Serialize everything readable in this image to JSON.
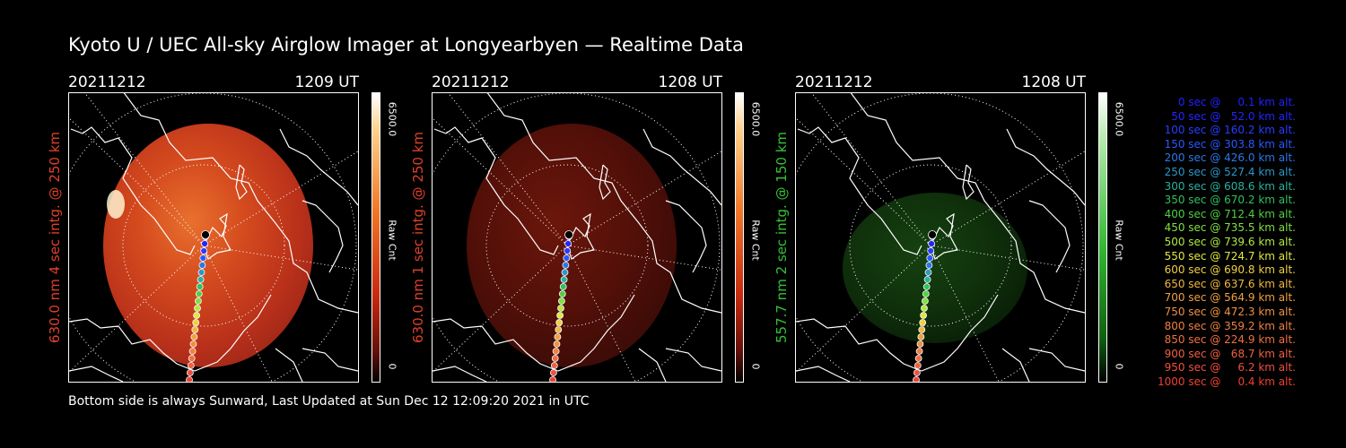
{
  "title": "Kyoto U / UEC All-sky Airglow Imager at Longyearbyen — Realtime Data",
  "footer": "Bottom side is always Sunward, Last Updated at Sun Dec 12 12:09:20 2021 in UTC",
  "colors": {
    "red_label": "#e0402a",
    "green_label": "#36c236"
  },
  "panels": [
    {
      "date": "20211212",
      "time": "1209 UT",
      "ylabel": "630.0 nm  4 sec intg. @ 250 km",
      "cbar_max": "6500.0",
      "cbar_unit": "Raw Cnt",
      "cbar_min": "0",
      "cmap": "red",
      "intensity": 1.0
    },
    {
      "date": "20211212",
      "time": "1208 UT",
      "ylabel": "630.0 nm  1 sec intg. @ 250 km",
      "cbar_max": "6500.0",
      "cbar_unit": "Raw Cnt",
      "cbar_min": "0",
      "cmap": "red",
      "intensity": 0.28
    },
    {
      "date": "20211212",
      "time": "1208 UT",
      "ylabel": "557.7 nm  2 sec intg. @ 150 km",
      "cbar_max": "6500.0",
      "cbar_unit": "Raw Cnt",
      "cbar_min": "0",
      "cmap": "green",
      "intensity": 0.35
    }
  ],
  "legend": [
    {
      "text": "   0 sec @     0.1 km alt.",
      "color": "#2020ff"
    },
    {
      "text": "  50 sec @   52.0 km alt.",
      "color": "#2424ff"
    },
    {
      "text": " 100 sec @ 160.2 km alt.",
      "color": "#2a3cff"
    },
    {
      "text": " 150 sec @ 303.8 km alt.",
      "color": "#2a58ff"
    },
    {
      "text": " 200 sec @ 426.0 km alt.",
      "color": "#2a78e8"
    },
    {
      "text": " 250 sec @ 527.4 km alt.",
      "color": "#2a98c8"
    },
    {
      "text": " 300 sec @ 608.6 km alt.",
      "color": "#2ab0a0"
    },
    {
      "text": " 350 sec @ 670.2 km alt.",
      "color": "#30c060"
    },
    {
      "text": " 400 sec @ 712.4 km alt.",
      "color": "#50d040"
    },
    {
      "text": " 450 sec @ 735.5 km alt.",
      "color": "#80e040"
    },
    {
      "text": " 500 sec @ 739.6 km alt.",
      "color": "#b0e840"
    },
    {
      "text": " 550 sec @ 724.7 km alt.",
      "color": "#e0e840"
    },
    {
      "text": " 600 sec @ 690.8 km alt.",
      "color": "#f0d040"
    },
    {
      "text": " 650 sec @ 637.6 km alt.",
      "color": "#f0b840"
    },
    {
      "text": " 700 sec @ 564.9 km alt.",
      "color": "#f0a040"
    },
    {
      "text": " 750 sec @ 472.3 km alt.",
      "color": "#f09040"
    },
    {
      "text": " 800 sec @ 359.2 km alt.",
      "color": "#f08040"
    },
    {
      "text": " 850 sec @ 224.9 km alt.",
      "color": "#f07040"
    },
    {
      "text": " 900 sec @   68.7 km alt.",
      "color": "#f06040"
    },
    {
      "text": " 950 sec @     6.2 km alt.",
      "color": "#f05040"
    },
    {
      "text": "1000 sec @     0.4 km alt.",
      "color": "#f04030"
    }
  ]
}
